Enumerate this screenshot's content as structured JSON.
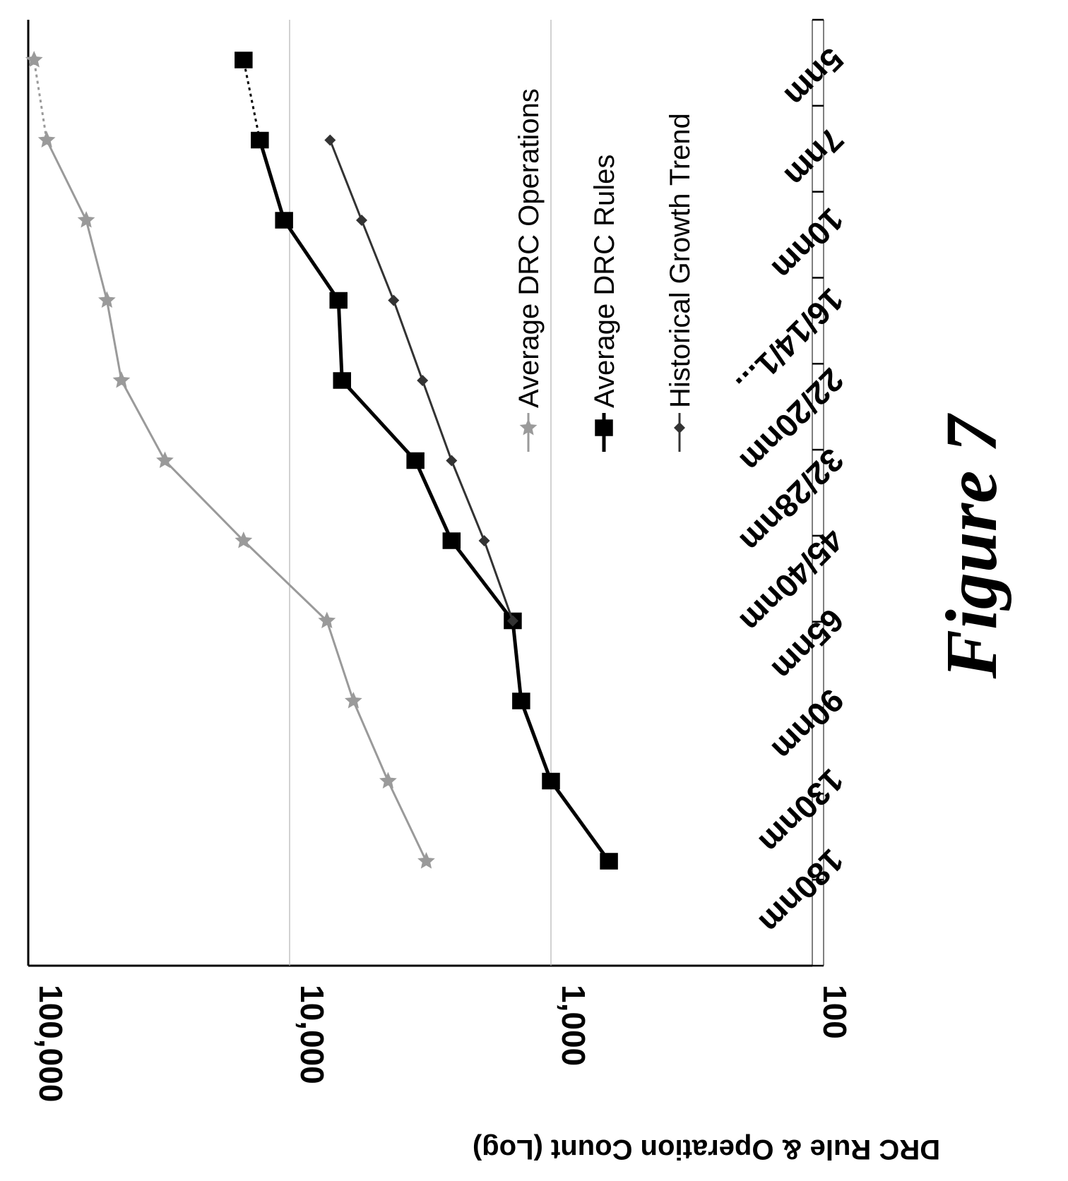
{
  "chart_data": {
    "type": "line",
    "orientation": "rotated-90-clockwise",
    "ylabel": "DRC Rule  & Operation Count (Log)",
    "yscale": "log",
    "ylim": [
      100,
      100000
    ],
    "yticks": [
      "100",
      "1,000",
      "10,000",
      "100,000"
    ],
    "categories": [
      "180nm",
      "130nm",
      "90nm",
      "65nm",
      "45/40nm",
      "32/28nm",
      "22/20nm",
      "16/14/1...",
      "10nm",
      "7nm",
      "5nm"
    ],
    "gridlines": true,
    "legend_position": "right",
    "series": [
      {
        "name": "Average DRC Operations",
        "color": "#9a9a9a",
        "marker": "star",
        "values": [
          3000,
          4200,
          5700,
          7200,
          15000,
          30000,
          44000,
          50000,
          60000,
          85000,
          95000
        ],
        "dashed_last_segment": true
      },
      {
        "name": "Average DRC Rules",
        "color": "#000000",
        "marker": "square",
        "values": [
          600,
          1000,
          1300,
          1400,
          2400,
          3300,
          6300,
          6500,
          10500,
          13000,
          15000
        ],
        "dashed_last_segment": true
      },
      {
        "name": "Historical Growth Trend",
        "color": "#333333",
        "marker": "diamond",
        "values": [
          null,
          null,
          null,
          1400,
          1800,
          2400,
          3100,
          4000,
          5300,
          7000,
          null
        ],
        "dashed_last_segment": false
      }
    ]
  },
  "caption": "Figure 7"
}
